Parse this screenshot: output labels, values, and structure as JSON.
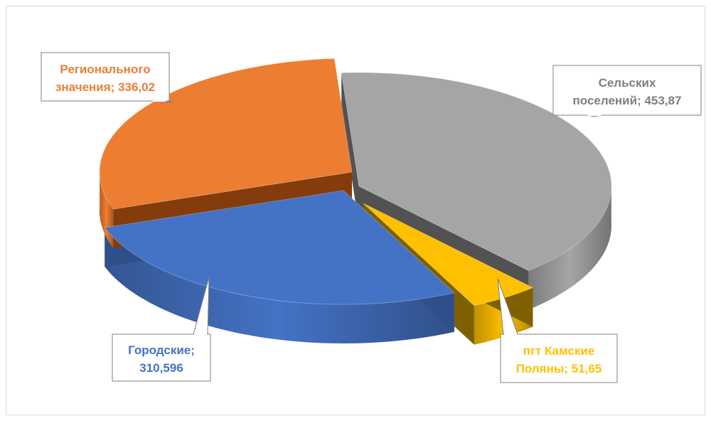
{
  "chart_data": {
    "type": "pie",
    "style": "3d-exploded",
    "slices": [
      {
        "label_line1": "Сельских",
        "label_line2": "поселений; 453,87",
        "value": 453.87,
        "color": "#a5a5a5",
        "side_color": "#525252",
        "label_color": "#7f7f7f"
      },
      {
        "label_line1": "пгт Камские",
        "label_line2": "Поляны; 51,65",
        "value": 51.65,
        "color": "#ffc000",
        "side_color": "#7f6000",
        "label_color": "#ffc000"
      },
      {
        "label_line1": "Городские;",
        "label_line2": "310,596",
        "value": 310.596,
        "color": "#4472c4",
        "side_color": "#2f4f8a",
        "label_color": "#4472c4"
      },
      {
        "label_line1": "Регионального",
        "label_line2": "значения; 336,02",
        "value": 336.02,
        "color": "#ed7d31",
        "side_color": "#843c0c",
        "label_color": "#ed7d31"
      }
    ],
    "legend": "none",
    "title": ""
  }
}
